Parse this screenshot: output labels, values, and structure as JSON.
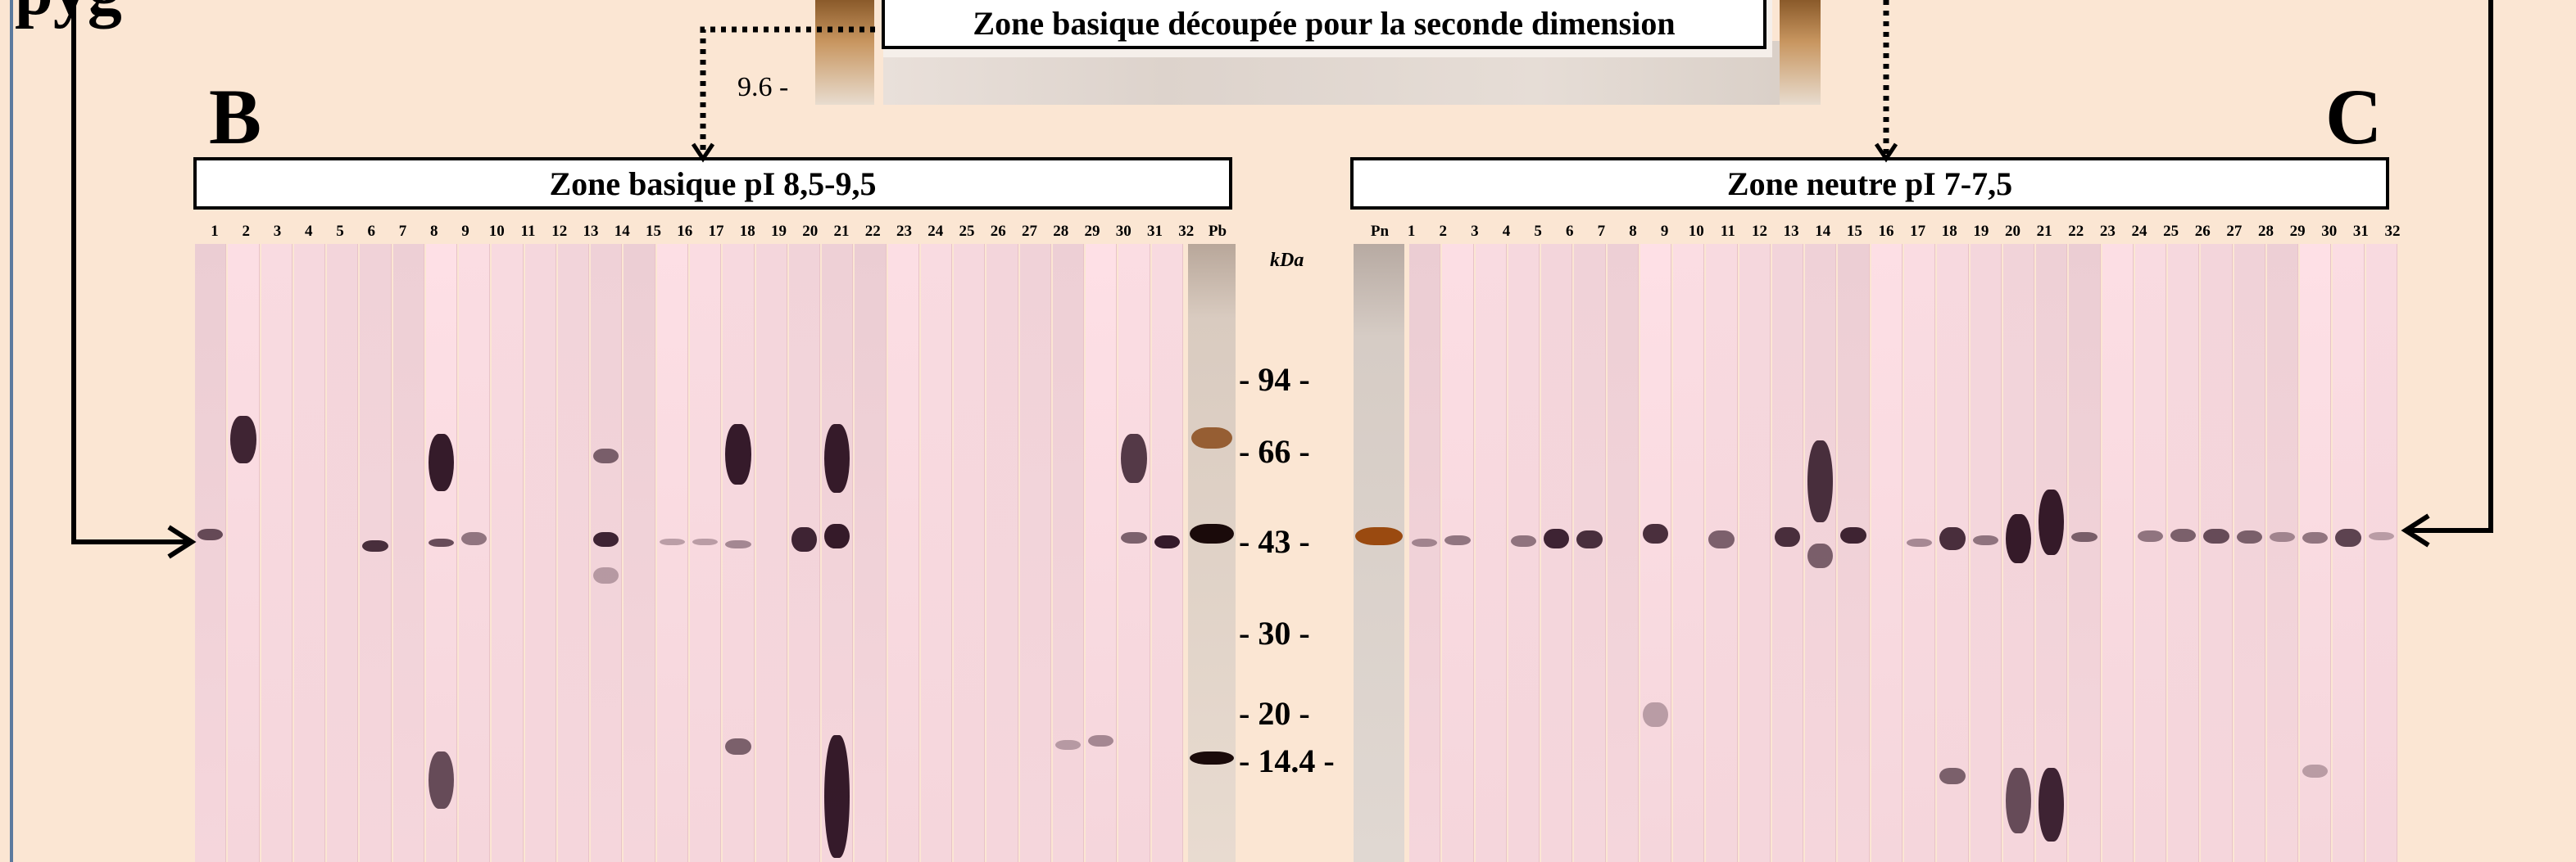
{
  "corner_text": "pyg",
  "top": {
    "cut_label": "Zone basique découpée pour la seconde dimension",
    "ph_tick": "9.6 -"
  },
  "panel_b": {
    "letter": "B",
    "title": "Zone basique pI 8,5-9,5",
    "lane_labels": [
      "1",
      "2",
      "3",
      "4",
      "5",
      "6",
      "7",
      "8",
      "9",
      "10",
      "11",
      "12",
      "13",
      "14",
      "15",
      "16",
      "17",
      "18",
      "19",
      "20",
      "21",
      "22",
      "23",
      "24",
      "25",
      "26",
      "27",
      "28",
      "29",
      "30",
      "31",
      "32",
      "Pb"
    ]
  },
  "panel_c": {
    "letter": "C",
    "title": "Zone neutre pI 7-7,5",
    "lane_labels": [
      "Pn",
      "1",
      "2",
      "3",
      "4",
      "5",
      "6",
      "7",
      "8",
      "9",
      "10",
      "11",
      "12",
      "13",
      "14",
      "15",
      "16",
      "17",
      "18",
      "19",
      "20",
      "21",
      "22",
      "23",
      "24",
      "25",
      "26",
      "27",
      "28",
      "29",
      "30",
      "31",
      "32"
    ]
  },
  "mw_scale": {
    "unit": "kDa",
    "markers": [
      "- 94 -",
      "- 66 -",
      "- 43 -",
      "- 30 -",
      "- 20 -",
      "- 14.4 -"
    ]
  },
  "colors": {
    "background": "#fbe6d3",
    "band_dark": "#2a1020",
    "marker_brown": "#8a4a1a",
    "frame_blue": "#5c7a9e"
  }
}
